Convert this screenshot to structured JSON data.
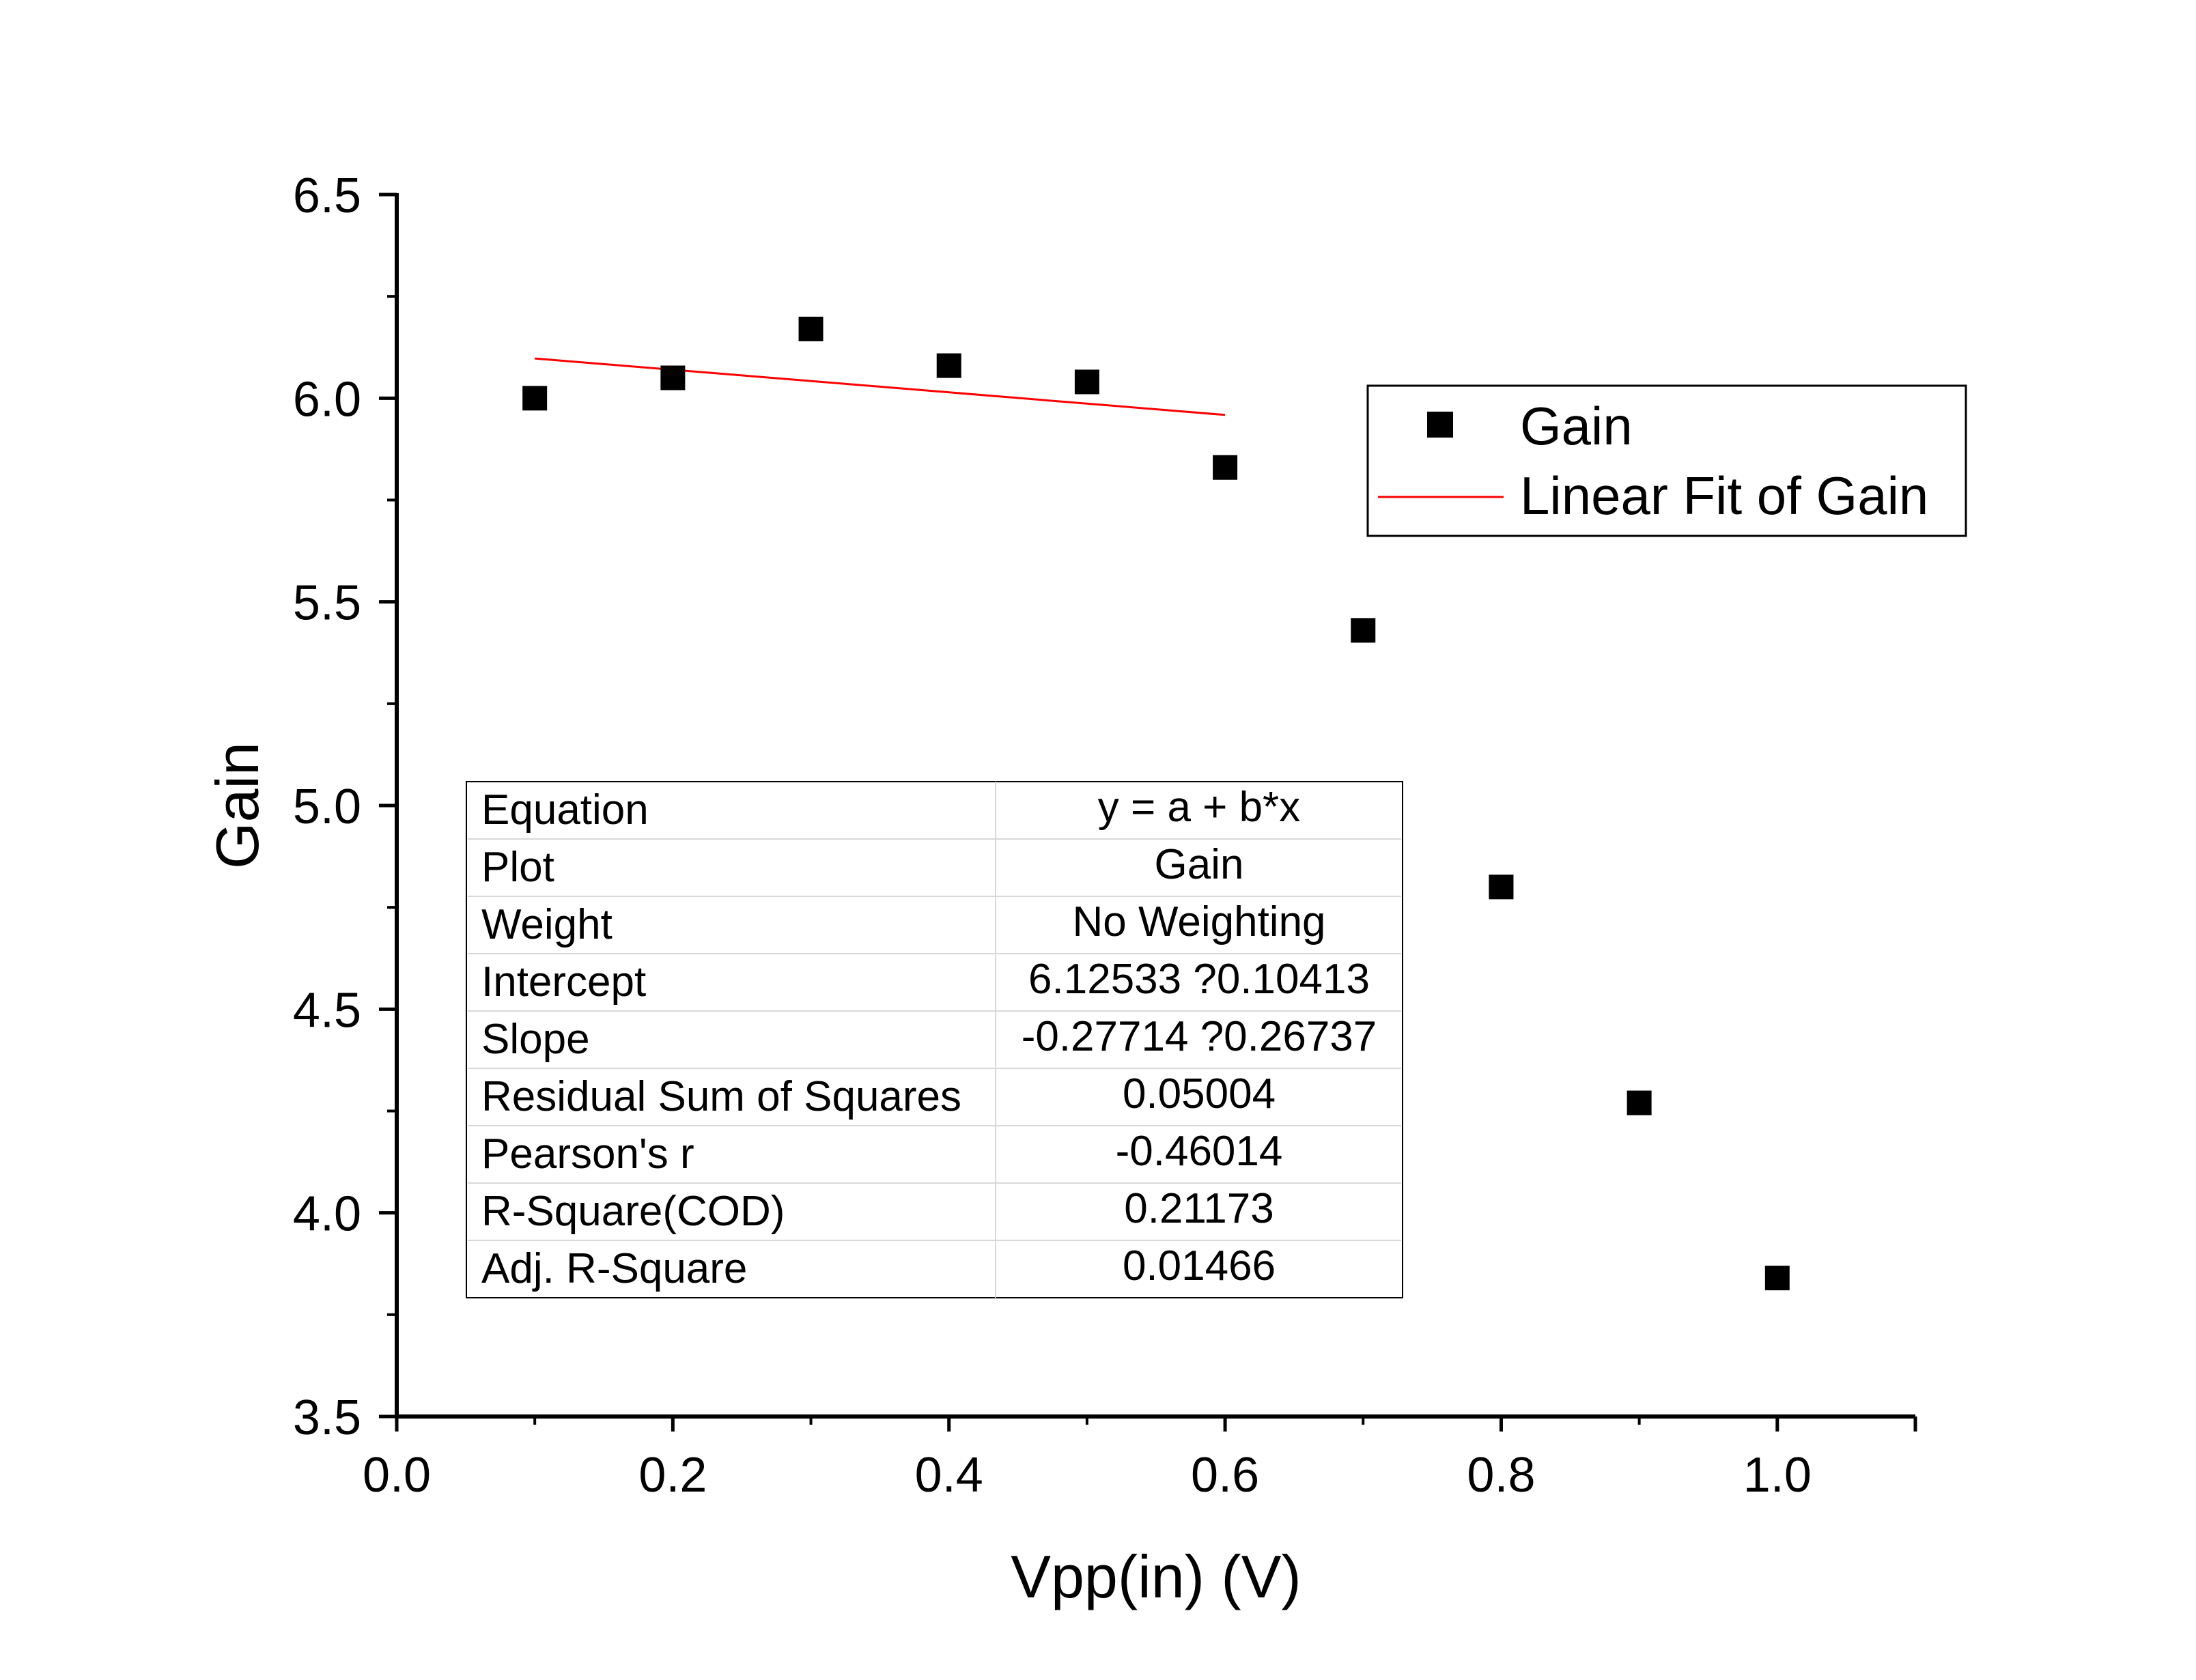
{
  "chart_data": {
    "type": "scatter",
    "xlabel": "Vpp(in) (V)",
    "ylabel": "Gain",
    "xlim": [
      0.0,
      1.1
    ],
    "ylim": [
      3.5,
      6.5
    ],
    "x_ticks": [
      "0.0",
      "0.2",
      "0.4",
      "0.6",
      "0.8",
      "1.0"
    ],
    "y_ticks": [
      "3.5",
      "4.0",
      "4.5",
      "5.0",
      "5.5",
      "6.0",
      "6.5"
    ],
    "grid": false,
    "legend_position": "top-right",
    "series": [
      {
        "name": "Gain",
        "kind": "scatter",
        "marker": "square",
        "color": "#000000",
        "x": [
          0.1,
          0.2,
          0.3,
          0.4,
          0.5,
          0.6,
          0.7,
          0.8,
          0.9,
          1.0
        ],
        "y": [
          6.0,
          6.05,
          6.17,
          6.08,
          6.04,
          5.83,
          5.43,
          4.8,
          4.27,
          3.84
        ]
      },
      {
        "name": "Linear Fit of Gain",
        "kind": "line",
        "color": "#ff0000",
        "x": [
          0.1,
          0.6
        ],
        "y": [
          6.0976,
          5.959
        ]
      }
    ],
    "fit_table": {
      "rows": [
        [
          "Equation",
          "y = a + b*x"
        ],
        [
          "Plot",
          "Gain"
        ],
        [
          "Weight",
          "No Weighting"
        ],
        [
          "Intercept",
          "6.12533 ?0.10413"
        ],
        [
          "Slope",
          "-0.27714 ?0.26737"
        ],
        [
          "Residual Sum of Squares",
          "0.05004"
        ],
        [
          "Pearson's r",
          "-0.46014"
        ],
        [
          "R-Square(COD)",
          "0.21173"
        ],
        [
          "Adj. R-Square",
          "0.01466"
        ]
      ]
    }
  }
}
